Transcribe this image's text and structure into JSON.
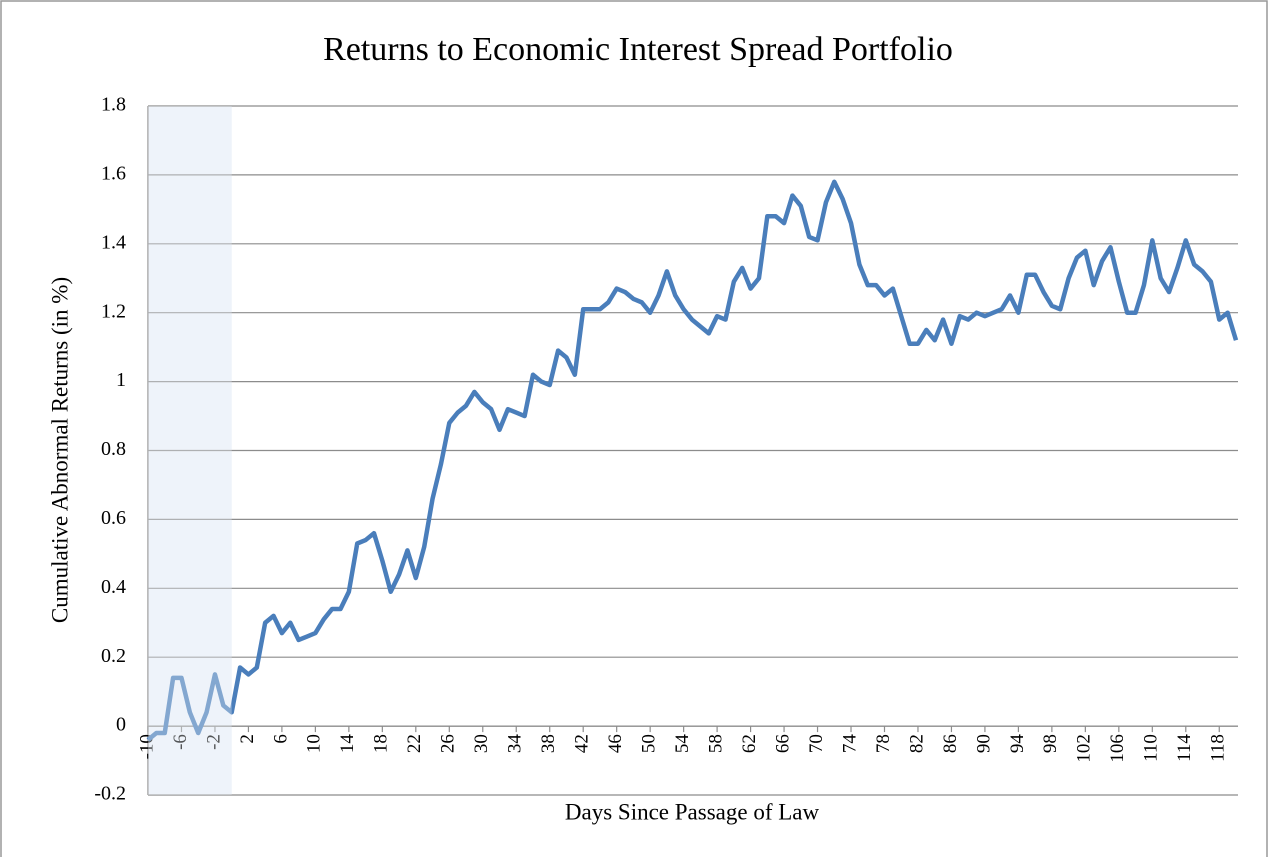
{
  "chart_data": {
    "type": "line",
    "title": "Returns to Economic Interest Spread Portfolio",
    "x_label": "Days Since Passage of Law",
    "y_label": "Cumulative Abnormal Returns (in %)",
    "x": [
      -10,
      -9,
      -8,
      -7,
      -6,
      -5,
      -4,
      -3,
      -2,
      -1,
      0,
      1,
      2,
      3,
      4,
      5,
      6,
      7,
      8,
      9,
      10,
      11,
      12,
      13,
      14,
      15,
      16,
      17,
      18,
      19,
      20,
      21,
      22,
      23,
      24,
      25,
      26,
      27,
      28,
      29,
      30,
      31,
      32,
      33,
      34,
      35,
      36,
      37,
      38,
      39,
      40,
      41,
      42,
      43,
      44,
      45,
      46,
      47,
      48,
      49,
      50,
      51,
      52,
      53,
      54,
      55,
      56,
      57,
      58,
      59,
      60,
      61,
      62,
      63,
      64,
      65,
      66,
      67,
      68,
      69,
      70,
      71,
      72,
      73,
      74,
      75,
      76,
      77,
      78,
      79,
      80,
      81,
      82,
      83,
      84,
      85,
      86,
      87,
      88,
      89,
      90,
      91,
      92,
      93,
      94,
      95,
      96,
      97,
      98,
      99,
      100,
      101,
      102,
      103,
      104,
      105,
      106,
      107,
      108,
      109,
      110,
      111,
      112,
      113,
      114,
      115,
      116,
      117,
      118,
      119,
      120
    ],
    "series": [
      {
        "name": "Cumulative Abnormal Returns",
        "color": "#4a7ebb",
        "values": [
          -0.04,
          -0.02,
          -0.02,
          0.14,
          0.14,
          0.04,
          -0.02,
          0.04,
          0.15,
          0.06,
          0.04,
          0.17,
          0.15,
          0.17,
          0.3,
          0.32,
          0.27,
          0.3,
          0.25,
          0.26,
          0.27,
          0.31,
          0.34,
          0.34,
          0.39,
          0.53,
          0.54,
          0.56,
          0.48,
          0.39,
          0.44,
          0.51,
          0.43,
          0.52,
          0.66,
          0.76,
          0.88,
          0.91,
          0.93,
          0.97,
          0.94,
          0.92,
          0.86,
          0.92,
          0.91,
          0.9,
          1.02,
          1.0,
          0.99,
          1.09,
          1.07,
          1.02,
          1.21,
          1.21,
          1.21,
          1.23,
          1.27,
          1.26,
          1.24,
          1.23,
          1.2,
          1.25,
          1.32,
          1.25,
          1.21,
          1.18,
          1.16,
          1.14,
          1.19,
          1.18,
          1.29,
          1.33,
          1.27,
          1.3,
          1.48,
          1.48,
          1.46,
          1.54,
          1.51,
          1.42,
          1.41,
          1.52,
          1.58,
          1.53,
          1.46,
          1.34,
          1.28,
          1.28,
          1.25,
          1.27,
          1.19,
          1.11,
          1.11,
          1.15,
          1.12,
          1.18,
          1.11,
          1.19,
          1.18,
          1.2,
          1.19,
          1.2,
          1.21,
          1.25,
          1.2,
          1.31,
          1.31,
          1.26,
          1.22,
          1.21,
          1.3,
          1.36,
          1.38,
          1.28,
          1.35,
          1.39,
          1.29,
          1.2,
          1.2,
          1.28,
          1.41,
          1.3,
          1.26,
          1.33,
          1.41,
          1.34,
          1.32,
          1.29,
          1.18,
          1.2,
          1.12
        ]
      }
    ],
    "xlim": [
      -10,
      120
    ],
    "xticks": [
      -10,
      -6,
      -2,
      2,
      6,
      10,
      14,
      18,
      22,
      26,
      30,
      34,
      38,
      42,
      46,
      50,
      54,
      58,
      62,
      66,
      70,
      74,
      78,
      82,
      86,
      90,
      94,
      98,
      102,
      106,
      110,
      114,
      118
    ],
    "ylim": [
      -0.2,
      1.8
    ],
    "yticks": [
      -0.2,
      0,
      0.2,
      0.4,
      0.6,
      0.8,
      1,
      1.2,
      1.4,
      1.6,
      1.8
    ],
    "grid": true,
    "highlight_xrange": [
      -10,
      0
    ],
    "highlight_color": "#eef3fa"
  }
}
